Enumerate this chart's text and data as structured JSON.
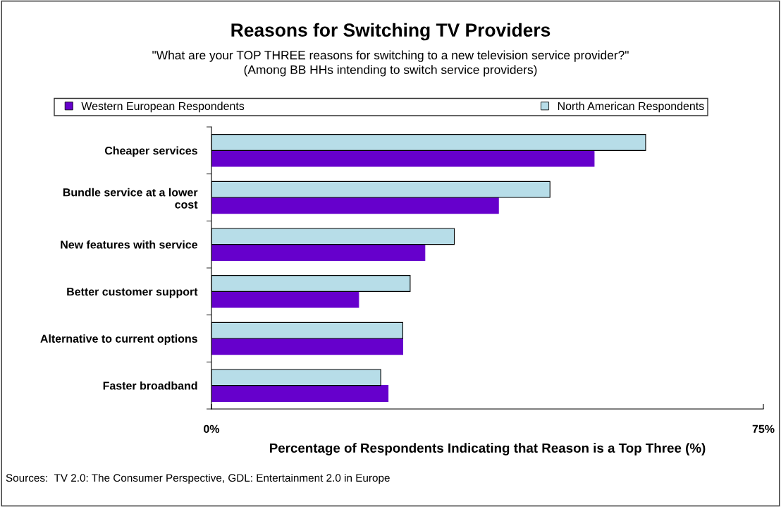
{
  "chart_data": {
    "type": "bar",
    "orientation": "horizontal",
    "title": "Reasons for Switching TV Providers",
    "subtitle": "\"What are your TOP THREE reasons for switching to a new television service provider?\"\n(Among BB HHs intending to switch service providers)",
    "xlabel": "Percentage of Respondents Indicating that Reason is a Top Three (%)",
    "categories": [
      "Cheaper services",
      "Bundle service at a lower\ncost",
      "New features with service",
      "Better customer support",
      "Alternative to current options",
      "Faster broadband"
    ],
    "series": [
      {
        "name": "Western European Respondents",
        "color": "#6600cc",
        "values": [
          52,
          39,
          29,
          20,
          26,
          24
        ]
      },
      {
        "name": "North American Respondents",
        "color": "#b7dde8",
        "values": [
          59,
          46,
          33,
          27,
          26,
          23
        ]
      }
    ],
    "xlim": [
      0,
      75
    ],
    "xticks": [
      {
        "value": 0,
        "label": "0%"
      },
      {
        "value": 75,
        "label": "75%"
      }
    ],
    "grid": false,
    "legend": "top",
    "annotations": [
      "Sources:  TV 2.0: The Consumer Perspective, GDL: Entertainment 2.0 in Europe"
    ]
  }
}
